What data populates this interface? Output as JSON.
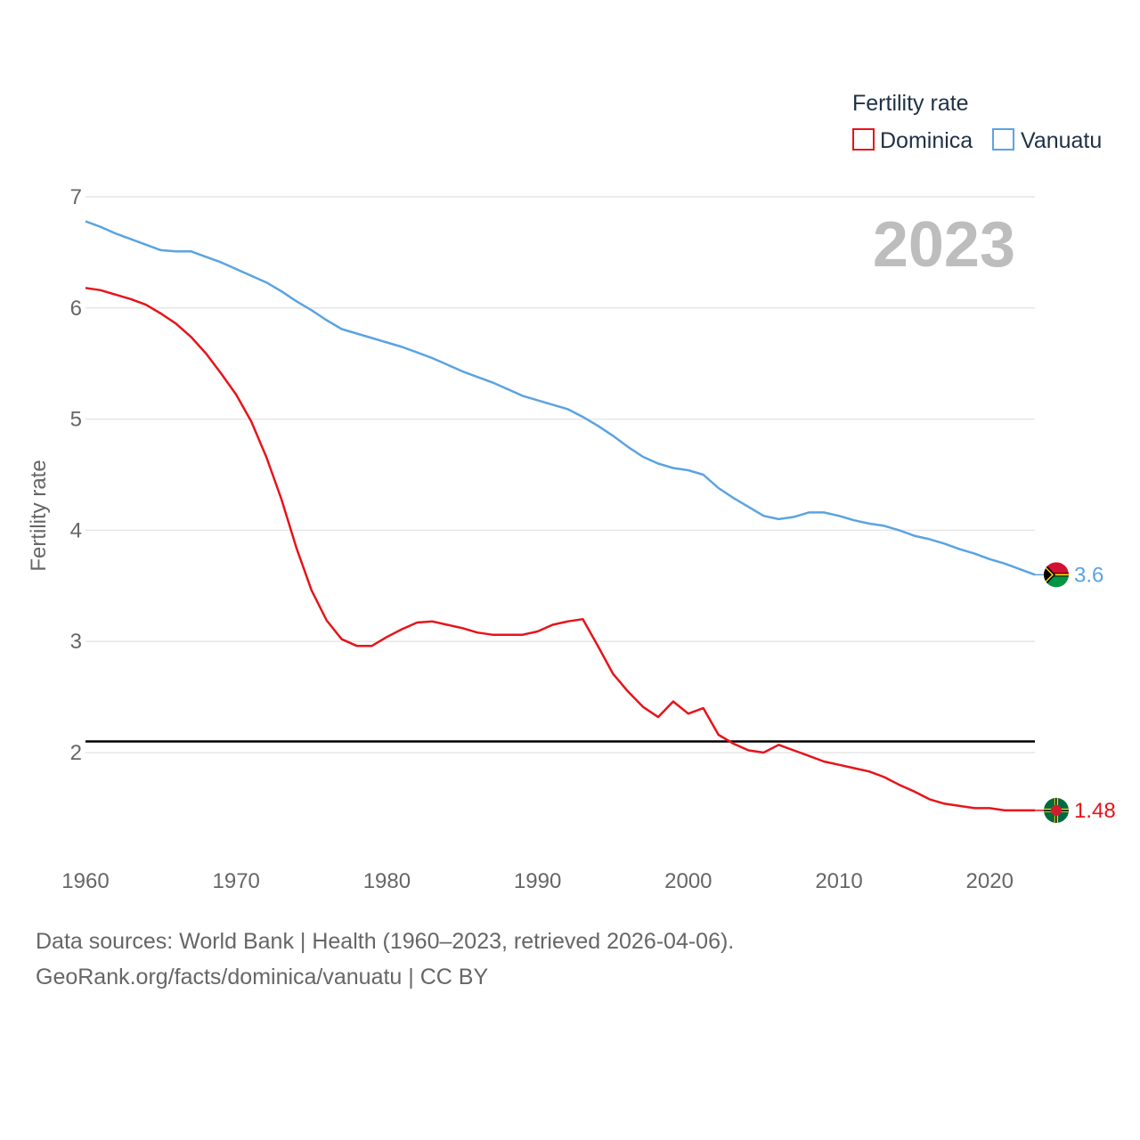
{
  "chart_data": {
    "type": "line",
    "ylabel": "Fertility rate",
    "xlabel": "",
    "xlim": [
      1960,
      2023
    ],
    "ylim": [
      1.1,
      7.2
    ],
    "x_ticks": [
      "1960",
      "1970",
      "1980",
      "1990",
      "2000",
      "2010",
      "2020"
    ],
    "y_ticks": [
      "2",
      "3",
      "4",
      "5",
      "6",
      "7"
    ],
    "year_label": "2023",
    "legend_title": "Fertility rate",
    "reference_line": 2.1,
    "x": [
      1960,
      1961,
      1962,
      1963,
      1964,
      1965,
      1966,
      1967,
      1968,
      1969,
      1970,
      1971,
      1972,
      1973,
      1974,
      1975,
      1976,
      1977,
      1978,
      1979,
      1980,
      1981,
      1982,
      1983,
      1984,
      1985,
      1986,
      1987,
      1988,
      1989,
      1990,
      1991,
      1992,
      1993,
      1994,
      1995,
      1996,
      1997,
      1998,
      1999,
      2000,
      2001,
      2002,
      2003,
      2004,
      2005,
      2006,
      2007,
      2008,
      2009,
      2010,
      2011,
      2012,
      2013,
      2014,
      2015,
      2016,
      2017,
      2018,
      2019,
      2020,
      2021,
      2022,
      2023
    ],
    "series": [
      {
        "name": "Dominica",
        "color": "#e8131a",
        "flag": "dominica-flag-icon",
        "end_label": "1.48",
        "values": [
          6.18,
          6.16,
          6.12,
          6.08,
          6.03,
          5.95,
          5.86,
          5.74,
          5.59,
          5.41,
          5.22,
          4.98,
          4.66,
          4.28,
          3.84,
          3.46,
          3.19,
          3.02,
          2.96,
          2.96,
          3.04,
          3.11,
          3.17,
          3.18,
          3.15,
          3.12,
          3.08,
          3.06,
          3.06,
          3.06,
          3.09,
          3.15,
          3.18,
          3.2,
          2.96,
          2.71,
          2.55,
          2.41,
          2.32,
          2.46,
          2.35,
          2.4,
          2.16,
          2.08,
          2.02,
          2.0,
          2.07,
          2.02,
          1.97,
          1.92,
          1.89,
          1.86,
          1.83,
          1.78,
          1.71,
          1.65,
          1.58,
          1.54,
          1.52,
          1.5,
          1.5,
          1.48,
          1.48,
          1.48
        ]
      },
      {
        "name": "Vanuatu",
        "color": "#5ba3e2",
        "flag": "vanuatu-flag-icon",
        "end_label": "3.6",
        "values": [
          6.78,
          6.73,
          6.67,
          6.62,
          6.57,
          6.52,
          6.51,
          6.51,
          6.46,
          6.41,
          6.35,
          6.29,
          6.23,
          6.15,
          6.06,
          5.98,
          5.89,
          5.81,
          5.77,
          5.73,
          5.69,
          5.65,
          5.6,
          5.55,
          5.49,
          5.43,
          5.38,
          5.33,
          5.27,
          5.21,
          5.17,
          5.13,
          5.09,
          5.02,
          4.94,
          4.85,
          4.75,
          4.66,
          4.6,
          4.56,
          4.54,
          4.5,
          4.38,
          4.29,
          4.21,
          4.13,
          4.1,
          4.12,
          4.16,
          4.16,
          4.13,
          4.09,
          4.06,
          4.04,
          4.0,
          3.95,
          3.92,
          3.88,
          3.83,
          3.79,
          3.74,
          3.7,
          3.65,
          3.6
        ]
      }
    ]
  },
  "footer": {
    "line1": "Data sources: World Bank | Health (1960–2023, retrieved 2026-04-06).",
    "line2": "GeoRank.org/facts/dominica/vanuatu | CC BY"
  }
}
